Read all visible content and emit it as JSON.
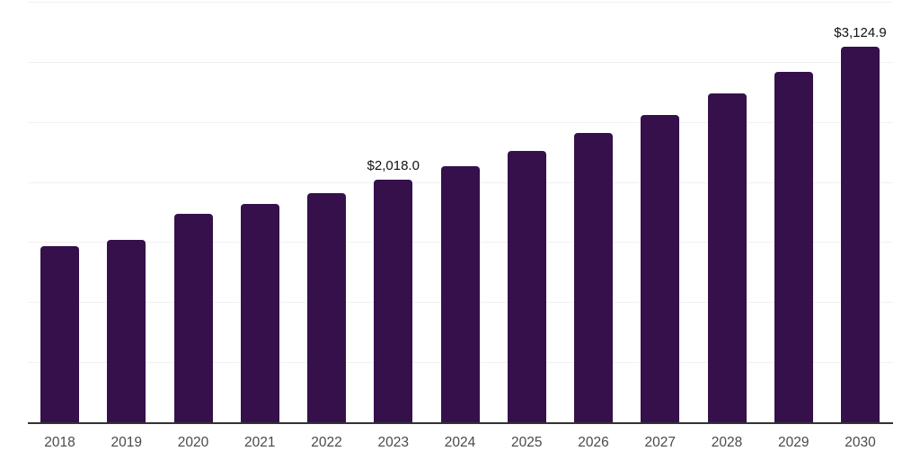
{
  "chart_data": {
    "type": "bar",
    "title": "",
    "xlabel": "",
    "ylabel": "",
    "categories": [
      "2018",
      "2019",
      "2020",
      "2021",
      "2022",
      "2023",
      "2024",
      "2025",
      "2026",
      "2027",
      "2028",
      "2029",
      "2030"
    ],
    "values": [
      1465,
      1520,
      1735,
      1815,
      1910,
      2018.0,
      2135,
      2260,
      2405,
      2560,
      2735,
      2920,
      3124.9
    ],
    "data_labels": {
      "2023": "$2,018.0",
      "2030": "$3,124.9"
    },
    "ylim": [
      0,
      3500
    ],
    "gridline_step": 500,
    "grid": "horizontal-only",
    "legend": "none",
    "colors": {
      "bar": "#35104B",
      "axis_line": "#333333",
      "gridline": "#f1f1f4",
      "tick_label": "#4a4a4a",
      "data_label": "#111111",
      "background": "#ffffff"
    }
  }
}
